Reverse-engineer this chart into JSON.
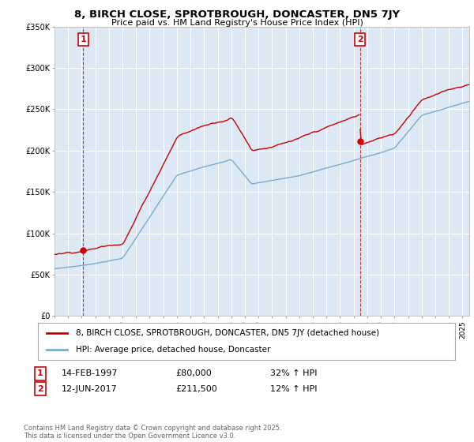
{
  "title": "8, BIRCH CLOSE, SPROTBROUGH, DONCASTER, DN5 7JY",
  "subtitle": "Price paid vs. HM Land Registry's House Price Index (HPI)",
  "bg_color": "#ffffff",
  "chart_bg_color": "#dce9f5",
  "grid_color": "#ffffff",
  "sale1_date": 1997.12,
  "sale1_price": 80000,
  "sale1_label": "1",
  "sale2_date": 2017.46,
  "sale2_price": 211500,
  "sale2_label": "2",
  "legend_entry1": "8, BIRCH CLOSE, SPROTBROUGH, DONCASTER, DN5 7JY (detached house)",
  "legend_entry2": "HPI: Average price, detached house, Doncaster",
  "footer": "Contains HM Land Registry data © Crown copyright and database right 2025.\nThis data is licensed under the Open Government Licence v3.0.",
  "red_color": "#cc0000",
  "blue_color": "#7aabcf",
  "xmin": 1995,
  "xmax": 2025.5,
  "ymin": 0,
  "ymax": 350000
}
